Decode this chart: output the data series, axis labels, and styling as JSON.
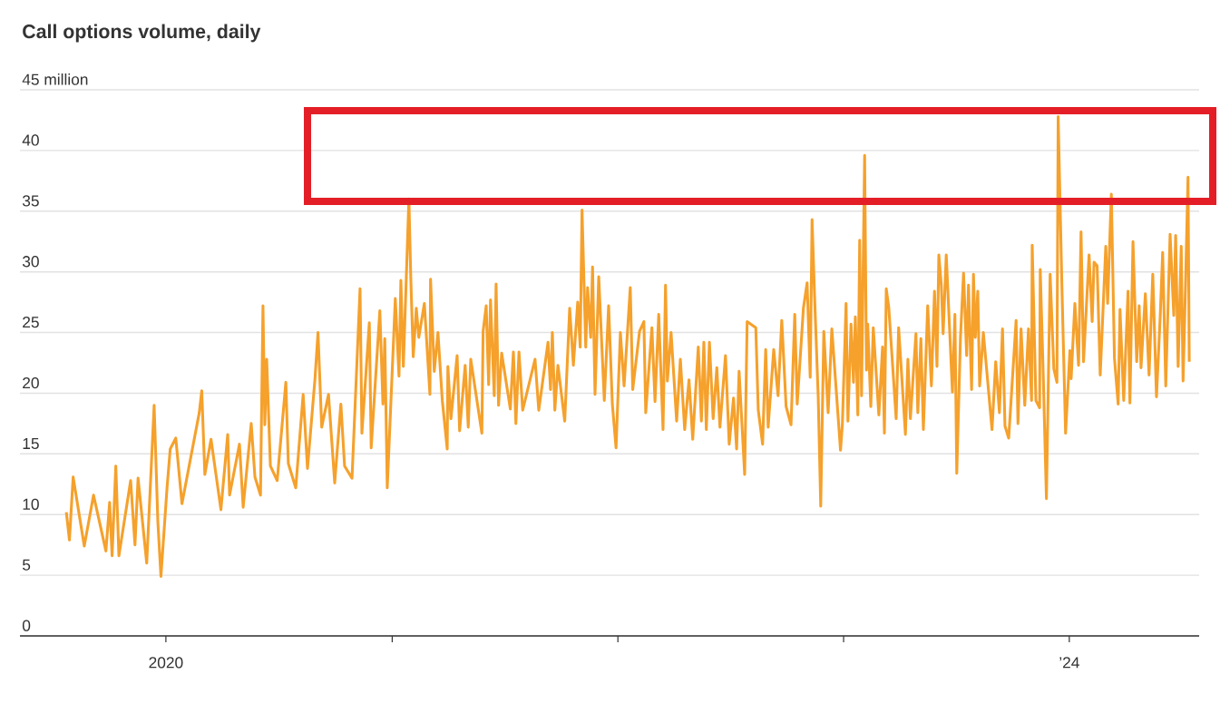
{
  "chart_data": {
    "type": "line",
    "title": "Call options volume, daily",
    "x": [
      "2019-07-24",
      "2019-07-29",
      "2019-08-04",
      "2019-08-22",
      "2019-09-06",
      "2019-09-26",
      "2019-10-02",
      "2019-10-06",
      "2019-10-12",
      "2019-10-17",
      "2019-11-05",
      "2019-11-12",
      "2019-11-17",
      "2019-12-01",
      "2019-12-13",
      "2019-12-19",
      "2019-12-24",
      "2020-01-03",
      "2020-01-08",
      "2020-01-17",
      "2020-01-27",
      "2020-02-24",
      "2020-02-28",
      "2020-03-04",
      "2020-03-14",
      "2020-03-30",
      "2020-04-10",
      "2020-04-13",
      "2020-04-29",
      "2020-05-05",
      "2020-05-18",
      "2020-05-24",
      "2020-06-02",
      "2020-06-06",
      "2020-06-09",
      "2020-06-12",
      "2020-06-18",
      "2020-06-29",
      "2020-07-13",
      "2020-07-17",
      "2020-07-29",
      "2020-08-10",
      "2020-08-17",
      "2020-08-29",
      "2020-09-03",
      "2020-09-09",
      "2020-09-20",
      "2020-09-30",
      "2020-10-10",
      "2020-10-16",
      "2020-10-28",
      "2020-11-10",
      "2020-11-13",
      "2020-11-25",
      "2020-11-28",
      "2020-12-12",
      "2020-12-17",
      "2020-12-20",
      "2020-12-24",
      "2021-01-06",
      "2021-01-12",
      "2021-01-15",
      "2021-01-19",
      "2021-01-28",
      "2021-01-31",
      "2021-02-04",
      "2021-02-09",
      "2021-02-13",
      "2021-02-22",
      "2021-03-03",
      "2021-03-04",
      "2021-03-10",
      "2021-03-16",
      "2021-03-23",
      "2021-03-31",
      "2021-04-01",
      "2021-04-06",
      "2021-04-16",
      "2021-04-20",
      "2021-04-29",
      "2021-05-04",
      "2021-05-08",
      "2021-05-26",
      "2021-05-28",
      "2021-06-02",
      "2021-06-06",
      "2021-06-09",
      "2021-06-15",
      "2021-06-18",
      "2021-06-22",
      "2021-06-27",
      "2021-07-11",
      "2021-07-16",
      "2021-07-20",
      "2021-07-25",
      "2021-07-31",
      "2021-08-20",
      "2021-08-26",
      "2021-09-10",
      "2021-09-14",
      "2021-09-17",
      "2021-09-21",
      "2021-09-26",
      "2021-10-07",
      "2021-10-15",
      "2021-10-21",
      "2021-10-28",
      "2021-11-01",
      "2021-11-04",
      "2021-11-10",
      "2021-11-13",
      "2021-11-18",
      "2021-11-21",
      "2021-11-25",
      "2021-12-01",
      "2021-12-10",
      "2021-12-17",
      "2021-12-23",
      "2021-12-29",
      "2022-01-05",
      "2022-01-11",
      "2022-01-21",
      "2022-01-25",
      "2022-02-05",
      "2022-02-12",
      "2022-02-15",
      "2022-02-25",
      "2022-03-02",
      "2022-03-08",
      "2022-03-15",
      "2022-03-19",
      "2022-03-22",
      "2022-03-28",
      "2022-04-06",
      "2022-04-12",
      "2022-04-19",
      "2022-04-26",
      "2022-05-02",
      "2022-05-11",
      "2022-05-16",
      "2022-05-20",
      "2022-05-24",
      "2022-05-29",
      "2022-06-04",
      "2022-06-10",
      "2022-06-15",
      "2022-06-24",
      "2022-06-30",
      "2022-07-07",
      "2022-07-12",
      "2022-07-16",
      "2022-07-25",
      "2022-07-29",
      "2022-08-12",
      "2022-08-16",
      "2022-08-23",
      "2022-08-28",
      "2022-09-01",
      "2022-09-10",
      "2022-09-17",
      "2022-09-23",
      "2022-09-30",
      "2022-10-08",
      "2022-10-14",
      "2022-10-18",
      "2022-10-28",
      "2022-11-03",
      "2022-11-08",
      "2022-11-11",
      "2022-11-15",
      "2022-11-21",
      "2022-11-25",
      "2022-11-30",
      "2022-12-07",
      "2022-12-13",
      "2022-12-27",
      "2022-12-30",
      "2023-01-05",
      "2023-01-08",
      "2023-01-13",
      "2023-01-17",
      "2023-01-20",
      "2023-01-24",
      "2023-01-27",
      "2023-01-30",
      "2023-02-04",
      "2023-02-07",
      "2023-02-09",
      "2023-02-14",
      "2023-02-18",
      "2023-02-27",
      "2023-03-05",
      "2023-03-08",
      "2023-03-11",
      "2023-03-15",
      "2023-03-27",
      "2023-03-31",
      "2023-04-11",
      "2023-04-15",
      "2023-04-19",
      "2023-04-28",
      "2023-05-01",
      "2023-05-06",
      "2023-05-10",
      "2023-05-17",
      "2023-05-23",
      "2023-05-28",
      "2023-06-01",
      "2023-06-04",
      "2023-06-08",
      "2023-06-11",
      "2023-06-16",
      "2023-06-26",
      "2023-06-30",
      "2023-07-03",
      "2023-07-09",
      "2023-07-14",
      "2023-07-19",
      "2023-07-22",
      "2023-07-27",
      "2023-07-30",
      "2023-08-02",
      "2023-08-06",
      "2023-08-09",
      "2023-08-15",
      "2023-08-29",
      "2023-09-04",
      "2023-09-10",
      "2023-09-15",
      "2023-09-19",
      "2023-09-25",
      "2023-10-07",
      "2023-10-10",
      "2023-10-15",
      "2023-10-21",
      "2023-10-27",
      "2023-11-01",
      "2023-11-02",
      "2023-11-08",
      "2023-11-14",
      "2023-11-15",
      "2023-11-20",
      "2023-11-25",
      "2023-12-01",
      "2023-12-07",
      "2023-12-12",
      "2023-12-14",
      "2023-12-20",
      "2023-12-26",
      "2024-01-02",
      "2024-01-04",
      "2024-01-10",
      "2024-01-16",
      "2024-01-20",
      "2024-01-24",
      "2024-02-02",
      "2024-02-07",
      "2024-02-10",
      "2024-02-15",
      "2024-02-20",
      "2024-02-29",
      "2024-03-03",
      "2024-03-09",
      "2024-03-14",
      "2024-03-20",
      "2024-03-23",
      "2024-03-29",
      "2024-04-05",
      "2024-04-08",
      "2024-04-13",
      "2024-04-19",
      "2024-04-23",
      "2024-04-26",
      "2024-05-03",
      "2024-05-09",
      "2024-05-15",
      "2024-05-21",
      "2024-05-27",
      "2024-05-31",
      "2024-06-05",
      "2024-06-12",
      "2024-06-18",
      "2024-06-21",
      "2024-06-25",
      "2024-06-30",
      "2024-07-03",
      "2024-07-07",
      "2024-07-11",
      "2024-07-13"
    ],
    "values": [
      10.2,
      7.9,
      13.1,
      7.4,
      11.6,
      7.0,
      11.0,
      6.6,
      14.0,
      6.6,
      12.8,
      7.5,
      13.0,
      6.0,
      19.0,
      9.4,
      4.9,
      12.3,
      15.4,
      16.3,
      10.9,
      18.4,
      20.2,
      13.3,
      16.2,
      10.4,
      16.6,
      11.6,
      15.8,
      10.6,
      17.5,
      13.1,
      11.6,
      27.2,
      17.4,
      22.8,
      14.0,
      12.8,
      20.9,
      14.2,
      12.2,
      19.9,
      13.8,
      21.1,
      25.0,
      17.2,
      19.9,
      12.6,
      19.1,
      14.0,
      13.0,
      28.6,
      16.7,
      25.8,
      15.5,
      26.8,
      19.1,
      24.5,
      12.2,
      27.8,
      21.4,
      29.3,
      22.2,
      36.0,
      29.6,
      23.0,
      27.0,
      24.6,
      27.4,
      19.9,
      29.4,
      21.8,
      25.0,
      19.4,
      15.4,
      22.2,
      17.9,
      23.1,
      16.9,
      22.3,
      17.2,
      22.8,
      16.7,
      25.1,
      27.2,
      20.7,
      27.7,
      19.8,
      29.0,
      19.0,
      23.3,
      18.7,
      23.4,
      17.5,
      23.4,
      18.6,
      22.8,
      18.6,
      24.2,
      20.3,
      25.0,
      18.6,
      22.3,
      17.7,
      27.0,
      22.3,
      27.5,
      23.8,
      35.1,
      23.8,
      28.7,
      24.6,
      30.4,
      19.9,
      29.6,
      19.4,
      27.2,
      19.1,
      15.5,
      25.0,
      20.6,
      28.7,
      20.3,
      25.1,
      25.9,
      18.4,
      25.4,
      19.3,
      26.5,
      17.0,
      28.9,
      21.0,
      25.0,
      17.7,
      22.8,
      17.0,
      21.1,
      16.2,
      23.8,
      17.7,
      24.2,
      17.0,
      24.2,
      17.9,
      22.1,
      17.2,
      23.1,
      15.8,
      19.6,
      15.4,
      21.8,
      13.3,
      25.9,
      25.4,
      18.6,
      15.8,
      23.6,
      17.2,
      23.6,
      19.8,
      26.0,
      18.9,
      17.4,
      26.5,
      19.1,
      27.0,
      29.1,
      21.3,
      34.3,
      28.1,
      19.6,
      10.7,
      25.1,
      18.4,
      25.3,
      15.3,
      17.4,
      27.4,
      17.7,
      25.7,
      20.9,
      26.3,
      18.2,
      32.6,
      19.8,
      39.6,
      21.9,
      25.7,
      18.9,
      25.4,
      18.2,
      23.8,
      16.7,
      28.6,
      27.1,
      17.9,
      25.4,
      16.6,
      22.8,
      17.9,
      24.9,
      18.4,
      24.5,
      17.0,
      27.2,
      20.6,
      28.4,
      22.2,
      31.4,
      28.9,
      24.9,
      31.4,
      20.1,
      26.5,
      13.4,
      24.6,
      29.9,
      23.1,
      28.9,
      20.3,
      29.8,
      24.6,
      28.4,
      20.6,
      25.0,
      17.0,
      22.6,
      18.4,
      25.3,
      17.3,
      16.3,
      26.0,
      17.5,
      25.3,
      19.0,
      25.3,
      19.4,
      32.2,
      19.4,
      18.8,
      30.2,
      21.2,
      11.3,
      29.8,
      22.0,
      20.9,
      42.8,
      28.9,
      16.7,
      23.5,
      21.2,
      27.4,
      22.3,
      33.3,
      22.6,
      31.4,
      25.9,
      30.8,
      30.5,
      21.5,
      32.1,
      27.4,
      36.4,
      22.9,
      19.1,
      26.9,
      19.4,
      28.4,
      19.2,
      32.5,
      22.6,
      27.2,
      22.1,
      28.2,
      21.5,
      29.8,
      19.7,
      26.3,
      31.6,
      20.6,
      33.1,
      26.4,
      33.0,
      22.2,
      32.1,
      21.0,
      29.0,
      37.8,
      22.6
    ],
    "color": "#f5a12c",
    "xlim": [
      "2019-05-10",
      "2024-07-29"
    ],
    "xticks": [
      {
        "value": "2020-01-01",
        "label": "2020"
      },
      {
        "value": "2021-01-01",
        "label": null
      },
      {
        "value": "2022-01-01",
        "label": null
      },
      {
        "value": "2023-01-01",
        "label": null
      },
      {
        "value": "2024-01-01",
        "label": "’24"
      }
    ],
    "ylim": [
      0,
      45
    ],
    "yticks": [
      0,
      5,
      10,
      15,
      20,
      25,
      30,
      35,
      40,
      {
        "value": 45,
        "label": "45 million"
      }
    ],
    "grid": "y"
  }
}
